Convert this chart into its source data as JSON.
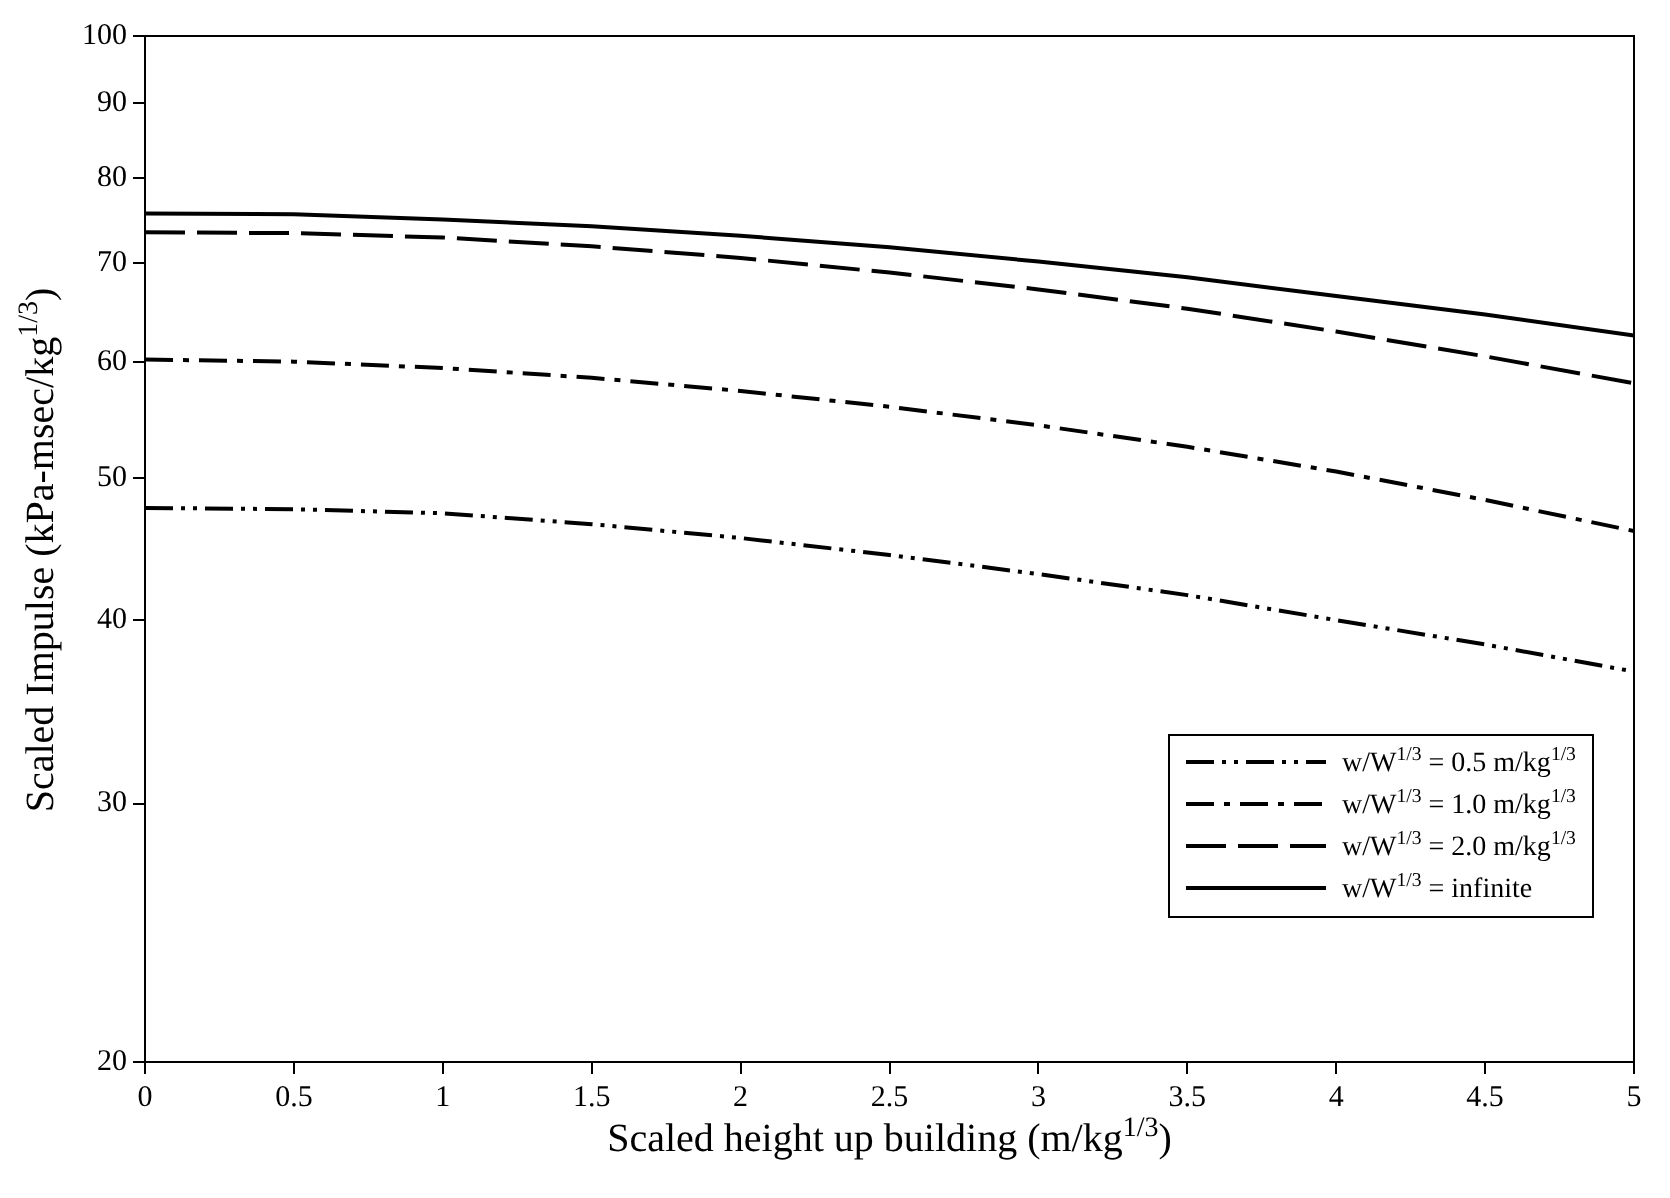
{
  "chart_data": {
    "type": "line",
    "xlabel": "Scaled height up building (m/kg$^{1/3}$)",
    "ylabel": "Scaled Impulse (kPa-msec/kg$^{1/3}$)",
    "x": [
      0,
      0.5,
      1,
      1.5,
      2,
      2.5,
      3,
      3.5,
      4,
      4.5,
      5
    ],
    "series": [
      {
        "name": "w/W$^{1/3}$ = 0.5 m/kg$^{1/3}$",
        "color": "#000000",
        "line_style": "dashed",
        "values": [
          47.7,
          47.6,
          47.3,
          46.5,
          45.5,
          44.3,
          43.0,
          41.6,
          40.0,
          38.5,
          36.9
        ]
      },
      {
        "name": "w/W$^{1/3}$ = 1.0 m/kg$^{1/3}$",
        "color": "#000000",
        "line_style": "dashed",
        "values": [
          60.2,
          60.0,
          59.4,
          58.5,
          57.3,
          55.9,
          54.3,
          52.5,
          50.5,
          48.3,
          46.0
        ]
      },
      {
        "name": "w/W$^{1/3}$ = 2.0 m/kg$^{1/3}$",
        "color": "#000000",
        "line_style": "dashed",
        "values": [
          73.5,
          73.4,
          72.9,
          71.9,
          70.6,
          69.0,
          67.2,
          65.2,
          62.9,
          60.5,
          58.0
        ]
      },
      {
        "name": "w/W$^{1/3}$ = infinite",
        "color": "#000000",
        "line_style": "solid",
        "values": [
          75.7,
          75.6,
          75.0,
          74.2,
          73.1,
          71.8,
          70.2,
          68.5,
          66.5,
          64.6,
          62.5
        ]
      }
    ],
    "xlim": [
      0,
      5
    ],
    "xticks": [
      0,
      0.5,
      1,
      1.5,
      2,
      2.5,
      3,
      3.5,
      4,
      4.5,
      5
    ],
    "ylim": [
      20,
      100
    ],
    "yticks": [
      20,
      30,
      40,
      50,
      60,
      70,
      80,
      90,
      100
    ],
    "log": "y",
    "grid": false,
    "legend": "bottom right",
    "marker": "none"
  }
}
